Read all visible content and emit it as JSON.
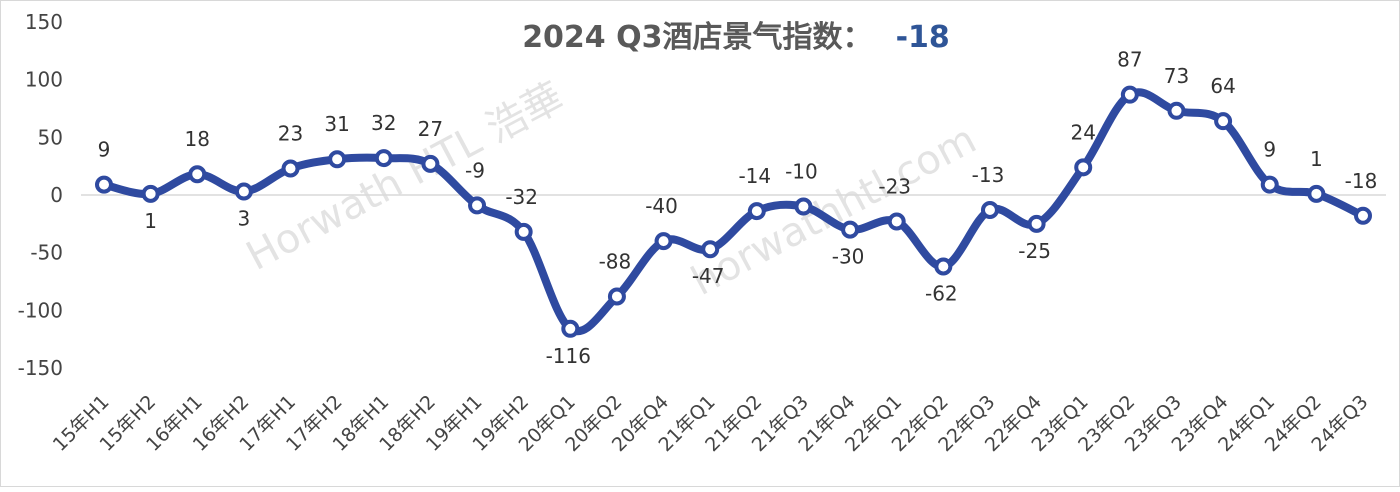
{
  "chart_data": {
    "type": "line",
    "title": "2024 Q3酒店景气指数：",
    "title_value": "-18",
    "x": [
      "15年H1",
      "15年H2",
      "16年H1",
      "16年H2",
      "17年H1",
      "17年H2",
      "18年H1",
      "18年H2",
      "19年H1",
      "19年H2",
      "20年Q1",
      "20年Q2",
      "20年Q4",
      "21年Q1",
      "21年Q2",
      "21年Q3",
      "21年Q4",
      "22年Q1",
      "22年Q2",
      "22年Q3",
      "22年Q4",
      "23年Q1",
      "23年Q2",
      "23年Q3",
      "23年Q4",
      "24年Q1",
      "24年Q2",
      "24年Q3"
    ],
    "values": [
      9,
      1,
      18,
      3,
      23,
      31,
      32,
      27,
      -9,
      -32,
      -116,
      -88,
      -40,
      -47,
      -14,
      -10,
      -30,
      -23,
      -62,
      -13,
      -25,
      24,
      87,
      73,
      64,
      9,
      1,
      -18
    ],
    "ylim": [
      -150,
      150
    ],
    "yticks": [
      -150,
      -100,
      -50,
      0,
      50,
      100,
      150
    ],
    "grid": false,
    "colors": {
      "line": "#2f4aa0",
      "title_value": "#2f5597",
      "zero_line": "#d9d9d9"
    }
  },
  "watermark": {
    "brand": "Horwath HTL 浩華",
    "site": "horwathhtl.com"
  }
}
